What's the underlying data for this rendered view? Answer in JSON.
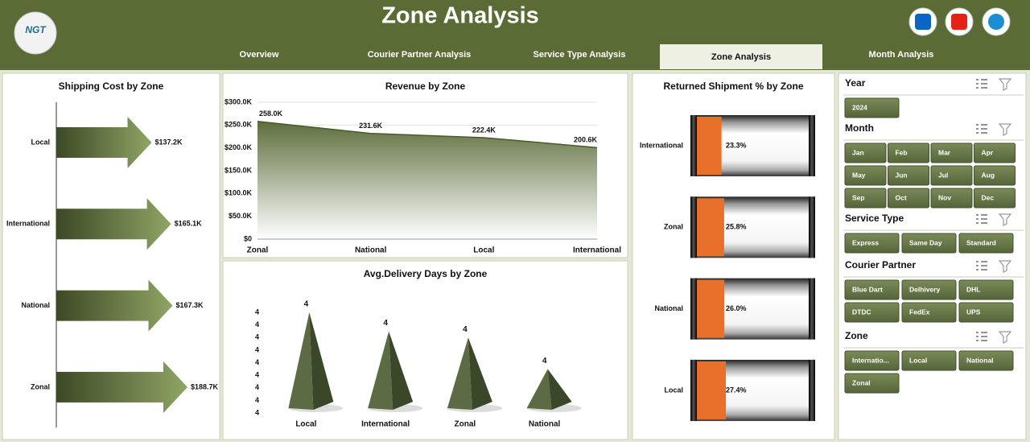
{
  "header": {
    "title": "Zone Analysis",
    "logo": "NGT"
  },
  "nav": {
    "tabs": [
      "Overview",
      "Courier Partner Analysis",
      "Service Type Analysis",
      "Zone Analysis",
      "Month Analysis"
    ],
    "active": 3
  },
  "chart_data": [
    {
      "type": "arrow",
      "title": "Shipping Cost by Zone",
      "categories": [
        "Local",
        "International",
        "National",
        "Zonal"
      ],
      "values": [
        137.2,
        165.1,
        167.3,
        188.7
      ],
      "value_labels": [
        "$137.2K",
        "$165.1K",
        "$167.3K",
        "$188.7K"
      ],
      "color": "#6f8448"
    },
    {
      "type": "area",
      "title": "Revenue by Zone",
      "categories": [
        "Zonal",
        "National",
        "Local",
        "International"
      ],
      "values": [
        258.0,
        231.6,
        222.4,
        200.6
      ],
      "value_labels": [
        "258.0K",
        "231.6K",
        "222.4K",
        "200.6K"
      ],
      "color": "#5d6e3c",
      "ylim": [
        0,
        300
      ],
      "yticks": [
        {
          "value": 0,
          "label": "$0"
        },
        {
          "value": 50,
          "label": "$50.0K"
        },
        {
          "value": 100,
          "label": "$100.0K"
        },
        {
          "value": 150,
          "label": "$150.0K"
        },
        {
          "value": 200,
          "label": "$200.0K"
        },
        {
          "value": 250,
          "label": "$250.0K"
        },
        {
          "value": 300,
          "label": "$300.0K"
        }
      ],
      "grid": true
    },
    {
      "type": "pyramid",
      "title": "Avg.Delivery Days by Zone",
      "categories": [
        "Local",
        "International",
        "Zonal",
        "National"
      ],
      "values": [
        4.06,
        4.03,
        4.02,
        3.97
      ],
      "value_labels": [
        "4",
        "4",
        "4",
        "4"
      ],
      "color": "#5c6b43",
      "ylim": [
        3.9,
        4.06
      ],
      "yticks": [
        {
          "value": 3.9,
          "label": "4"
        },
        {
          "value": 3.92,
          "label": "4"
        },
        {
          "value": 3.94,
          "label": "4"
        },
        {
          "value": 3.96,
          "label": "4"
        },
        {
          "value": 3.98,
          "label": "4"
        },
        {
          "value": 4.0,
          "label": "4"
        },
        {
          "value": 4.02,
          "label": "4"
        },
        {
          "value": 4.04,
          "label": "4"
        },
        {
          "value": 4.06,
          "label": "4"
        }
      ]
    },
    {
      "type": "cylinder",
      "title": "Returned Shipment % by Zone",
      "categories": [
        "International",
        "Zonal",
        "National",
        "Local"
      ],
      "values": [
        23.3,
        25.8,
        26.0,
        27.4
      ],
      "value_labels": [
        "23.3%",
        "25.8%",
        "26.0%",
        "27.4%"
      ],
      "color": "#e8702a"
    }
  ],
  "slicers": [
    {
      "title": "Year",
      "items": [
        "2024"
      ]
    },
    {
      "title": "Month",
      "items": [
        "Jan",
        "Feb",
        "Mar",
        "Apr",
        "May",
        "Jun",
        "Jul",
        "Aug",
        "Sep",
        "Oct",
        "Nov",
        "Dec"
      ]
    },
    {
      "title": "Service Type",
      "items": [
        "Express",
        "Same Day",
        "Standard"
      ]
    },
    {
      "title": "Courier Partner",
      "items": [
        "Blue Dart",
        "Delhivery",
        "DHL",
        "DTDC",
        "FedEx",
        "UPS"
      ]
    },
    {
      "title": "Zone",
      "items": [
        "Internatio...",
        "Local",
        "National",
        "Zonal"
      ]
    }
  ]
}
